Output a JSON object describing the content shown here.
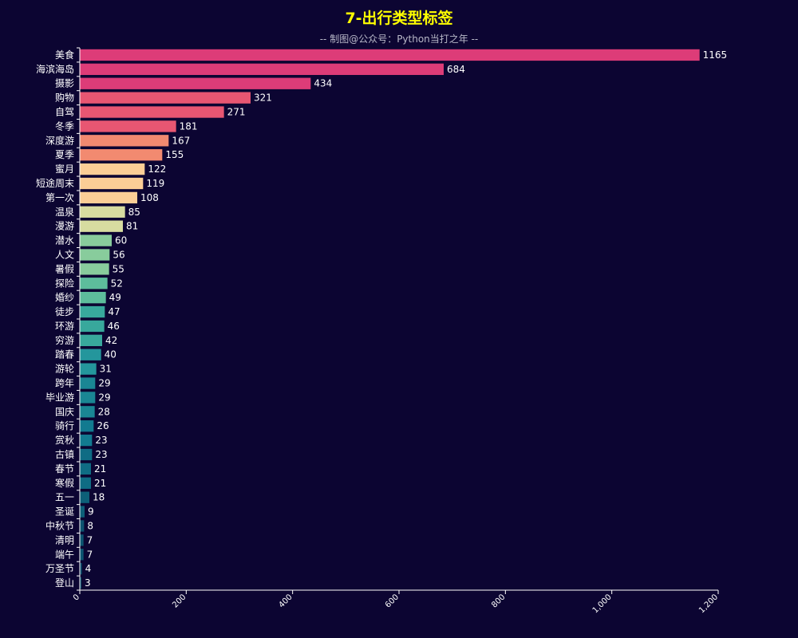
{
  "chart_data": {
    "type": "bar",
    "orientation": "horizontal",
    "title": "7-出行类型标签",
    "subtitle": "-- 制图@公众号：Python当打之年 --",
    "categories": [
      "美食",
      "海滨海岛",
      "摄影",
      "购物",
      "自驾",
      "冬季",
      "深度游",
      "夏季",
      "蜜月",
      "短途周末",
      "第一次",
      "温泉",
      "漫游",
      "潜水",
      "人文",
      "暑假",
      "探险",
      "婚纱",
      "徒步",
      "环游",
      "穷游",
      "踏春",
      "游轮",
      "跨年",
      "毕业游",
      "国庆",
      "骑行",
      "赏秋",
      "古镇",
      "春节",
      "寒假",
      "五一",
      "圣诞",
      "中秋节",
      "清明",
      "端午",
      "万圣节",
      "登山"
    ],
    "values": [
      1165,
      684,
      434,
      321,
      271,
      181,
      167,
      155,
      122,
      119,
      108,
      85,
      81,
      60,
      56,
      55,
      52,
      49,
      47,
      46,
      42,
      40,
      31,
      29,
      29,
      28,
      26,
      23,
      23,
      21,
      21,
      18,
      9,
      8,
      7,
      7,
      4,
      3
    ],
    "xlim": [
      0,
      1200
    ],
    "xticks": [
      "0",
      "200",
      "400",
      "600",
      "800",
      "1,000",
      "1,200"
    ],
    "xtick_values": [
      0,
      200,
      400,
      600,
      800,
      1000,
      1200
    ],
    "colors": {
      "background": "#0c0532",
      "title": "#ffff00",
      "gradient_stops": [
        "#dd3c78",
        "#e85672",
        "#f28a70",
        "#fbce96",
        "#d7dca0",
        "#88cc9c",
        "#5dbd9c",
        "#38a89c",
        "#24969c",
        "#1a8694",
        "#127a90",
        "#0f6c84",
        "#0d5f78",
        "#0c5470",
        "#0b4a68"
      ]
    },
    "grid": false
  }
}
